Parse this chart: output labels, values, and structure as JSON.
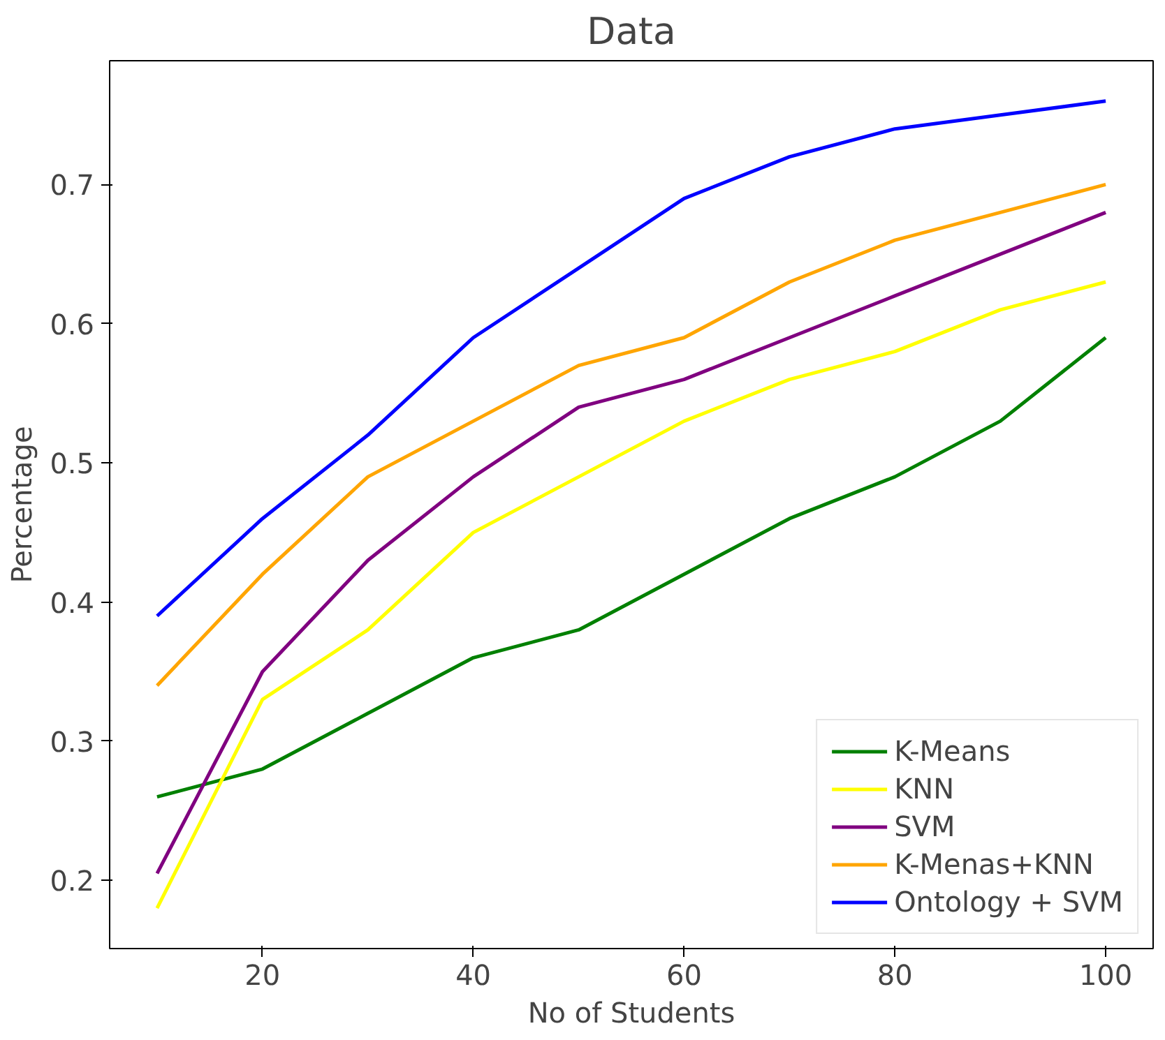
{
  "chart_data": {
    "type": "line",
    "title": "Data",
    "xlabel": "No of Students",
    "ylabel": "Percentage",
    "x": [
      10,
      20,
      30,
      40,
      50,
      60,
      70,
      80,
      90,
      100
    ],
    "series": [
      {
        "name": "K-Means",
        "color": "#008000",
        "values": [
          0.26,
          0.28,
          0.32,
          0.36,
          0.38,
          0.42,
          0.46,
          0.49,
          0.53,
          0.59
        ]
      },
      {
        "name": "KNN",
        "color": "#ffff00",
        "values": [
          0.18,
          0.33,
          0.38,
          0.45,
          0.49,
          0.53,
          0.56,
          0.58,
          0.61,
          0.63
        ]
      },
      {
        "name": "SVM",
        "color": "#800080",
        "values": [
          0.205,
          0.35,
          0.43,
          0.49,
          0.54,
          0.56,
          0.59,
          0.62,
          0.65,
          0.68
        ]
      },
      {
        "name": "K-Menas+KNN",
        "color": "#ffa500",
        "values": [
          0.34,
          0.42,
          0.49,
          0.53,
          0.57,
          0.59,
          0.63,
          0.66,
          0.68,
          0.7
        ]
      },
      {
        "name": "Ontology + SVM",
        "color": "#0000ff",
        "values": [
          0.39,
          0.46,
          0.52,
          0.59,
          0.64,
          0.69,
          0.72,
          0.74,
          0.75,
          0.76
        ]
      }
    ],
    "xlim": [
      5.5,
      104.5
    ],
    "ylim": [
      0.151,
      0.789
    ],
    "xticks": [
      20,
      40,
      60,
      80,
      100
    ],
    "yticks": [
      0.2,
      0.3,
      0.4,
      0.5,
      0.6,
      0.7
    ],
    "grid": false,
    "legend": "bottom right",
    "marker": "none",
    "line_style": "solid"
  }
}
